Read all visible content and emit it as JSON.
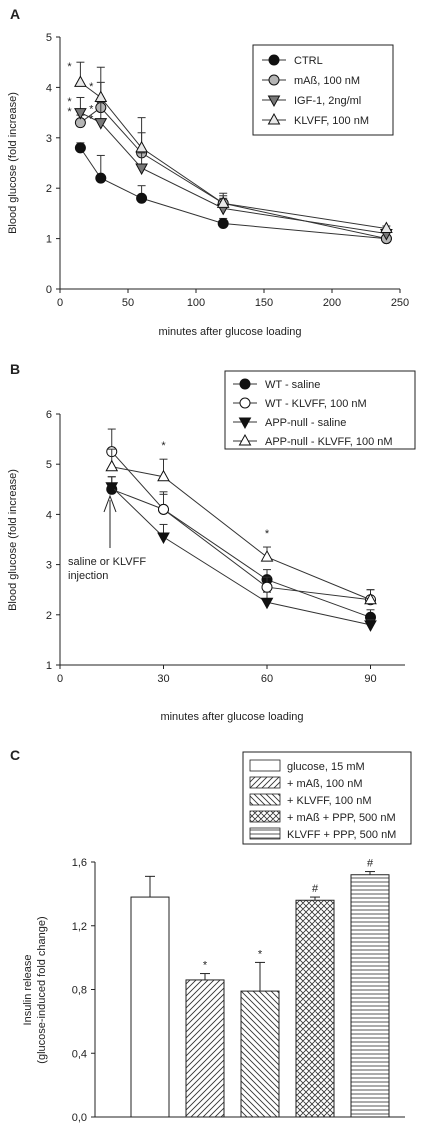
{
  "chart_data": [
    {
      "panel": "A",
      "type": "line",
      "xlabel": "minutes after glucose loading",
      "ylabel": "Blood glucose (fold increase)",
      "xlim": [
        0,
        250
      ],
      "ylim": [
        0,
        5
      ],
      "xticks": [
        0,
        50,
        100,
        150,
        200,
        250
      ],
      "yticks": [
        0,
        1,
        2,
        3,
        4,
        5
      ],
      "legend_position": "top-right",
      "series": [
        {
          "name": "CTRL",
          "marker": "circle",
          "fill": "#111111",
          "x": [
            15,
            30,
            60,
            120,
            240
          ],
          "y": [
            2.8,
            2.2,
            1.8,
            1.3,
            1.0
          ],
          "err": [
            0.1,
            0.45,
            0.25,
            0.1,
            0.05
          ]
        },
        {
          "name": "mAß, 100 nM",
          "marker": "circle",
          "fill": "#b5b5b5",
          "x": [
            15,
            30,
            60,
            120,
            240
          ],
          "y": [
            3.3,
            3.6,
            2.7,
            1.7,
            1.0
          ],
          "err": [
            0.15,
            0.5,
            0.4,
            0.15,
            0.05
          ]
        },
        {
          "name": "IGF-1, 2ng/ml",
          "marker": "triangle-down",
          "fill": "#777777",
          "x": [
            15,
            30,
            60,
            120,
            240
          ],
          "y": [
            3.5,
            3.3,
            2.4,
            1.6,
            1.1
          ],
          "err": [
            0.3,
            0.4,
            0.3,
            0.2,
            0.05
          ]
        },
        {
          "name": "KLVFF, 100 nM",
          "marker": "triangle-up",
          "fill": "#e8e8e8",
          "x": [
            15,
            30,
            60,
            120,
            240
          ],
          "y": [
            4.1,
            3.8,
            2.8,
            1.7,
            1.2
          ],
          "err": [
            0.4,
            0.6,
            0.6,
            0.2,
            0.05
          ]
        }
      ],
      "annotations": [
        {
          "text": "*",
          "x": 7,
          "y": 4.35
        },
        {
          "text": "*",
          "x": 7,
          "y": 3.65
        },
        {
          "text": "*",
          "x": 7,
          "y": 3.45
        },
        {
          "text": "*",
          "x": 23,
          "y": 3.95
        },
        {
          "text": "*",
          "x": 23,
          "y": 3.5
        },
        {
          "text": "*",
          "x": 23,
          "y": 3.3
        }
      ]
    },
    {
      "panel": "B",
      "type": "line",
      "xlabel": "minutes after glucose loading",
      "ylabel": "Blood glucose (fold increase)",
      "xlim": [
        0,
        100
      ],
      "ylim": [
        1,
        6
      ],
      "xticks": [
        0,
        30,
        60,
        90
      ],
      "yticks": [
        1,
        2,
        3,
        4,
        5,
        6
      ],
      "legend_position": "top-right",
      "series": [
        {
          "name": "WT - saline",
          "marker": "circle",
          "fill": "#111111",
          "x": [
            15,
            30,
            60,
            90
          ],
          "y": [
            4.5,
            4.1,
            2.7,
            1.95
          ],
          "err": [
            0.25,
            0.3,
            0.2,
            0.15
          ]
        },
        {
          "name": "WT - KLVFF, 100 nM",
          "marker": "circle",
          "fill": "#ffffff",
          "x": [
            15,
            30,
            60,
            90
          ],
          "y": [
            5.25,
            4.1,
            2.55,
            2.3
          ],
          "err": [
            0.45,
            0.35,
            0.2,
            0.2
          ]
        },
        {
          "name": "APP-null - saline",
          "marker": "triangle-down",
          "fill": "#111111",
          "x": [
            15,
            30,
            60,
            90
          ],
          "y": [
            4.55,
            3.55,
            2.25,
            1.8
          ],
          "err": [
            0.2,
            0.25,
            0.2,
            0.1
          ]
        },
        {
          "name": "APP-null - KLVFF, 100 nM",
          "marker": "triangle-up",
          "fill": "#ffffff",
          "x": [
            15,
            30,
            60,
            90
          ],
          "y": [
            4.95,
            4.75,
            3.15,
            2.3
          ],
          "err": [
            0.35,
            0.35,
            0.2,
            0.2
          ]
        }
      ],
      "annotations": [
        {
          "text": "*",
          "x": 30,
          "y": 5.3
        },
        {
          "text": "*",
          "x": 60,
          "y": 3.55
        }
      ],
      "arrow_note": "saline or KLVFF\ninjection"
    },
    {
      "panel": "C",
      "type": "bar",
      "ylabel": "Insulin release\n(glucose-induced fold change)",
      "ylim": [
        0,
        1.6
      ],
      "yticks": [
        "0,0",
        "0,4",
        "0,8",
        "1,2",
        "1,6"
      ],
      "ytick_values": [
        0,
        0.4,
        0.8,
        1.2,
        1.6
      ],
      "legend_position": "top-right",
      "categories": [
        "glucose, 15 mM",
        "+ mAß, 100 nM",
        "+ KLVFF, 100 nM",
        "+ mAß + PPP, 500 nM",
        "KLVFF + PPP, 500 nM"
      ],
      "values": [
        1.38,
        0.86,
        0.79,
        1.36,
        1.52
      ],
      "errors": [
        0.13,
        0.04,
        0.18,
        0.02,
        0.02
      ],
      "patterns": [
        "none",
        "diag-right",
        "diag-left",
        "cross",
        "horizontal"
      ],
      "annotations": [
        "",
        "*",
        "*",
        "#",
        "#"
      ]
    }
  ]
}
